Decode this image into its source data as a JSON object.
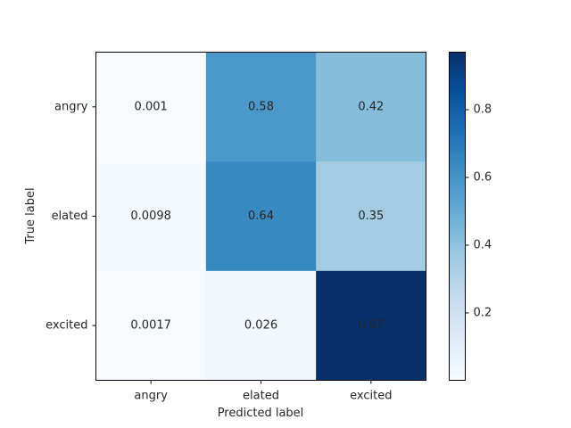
{
  "chart_data": {
    "type": "heatmap",
    "title": "",
    "xlabel": "Predicted label",
    "ylabel": "True label",
    "x_categories": [
      "angry",
      "elated",
      "excited"
    ],
    "y_categories": [
      "angry",
      "elated",
      "excited"
    ],
    "values": [
      [
        0.001,
        0.58,
        0.42
      ],
      [
        0.0098,
        0.64,
        0.35
      ],
      [
        0.0017,
        0.026,
        0.97
      ]
    ],
    "cell_labels": [
      [
        "0.001",
        "0.58",
        "0.42"
      ],
      [
        "0.0098",
        "0.64",
        "0.35"
      ],
      [
        "0.0017",
        "0.026",
        "0.97"
      ]
    ],
    "colormap": "Blues",
    "colormap_stops": [
      "#f7fbff",
      "#deebf7",
      "#c6dbef",
      "#9ecae1",
      "#6baed6",
      "#4292c6",
      "#2171b5",
      "#08519c",
      "#08306b"
    ],
    "colorbar": {
      "range": [
        0.001,
        0.97
      ],
      "ticks": [
        0.2,
        0.4,
        0.6,
        0.8
      ],
      "tick_labels": [
        "0.2",
        "0.4",
        "0.6",
        "0.8"
      ]
    },
    "text_colors": {
      "dark": "#08306b",
      "light": "#ffffff"
    }
  }
}
